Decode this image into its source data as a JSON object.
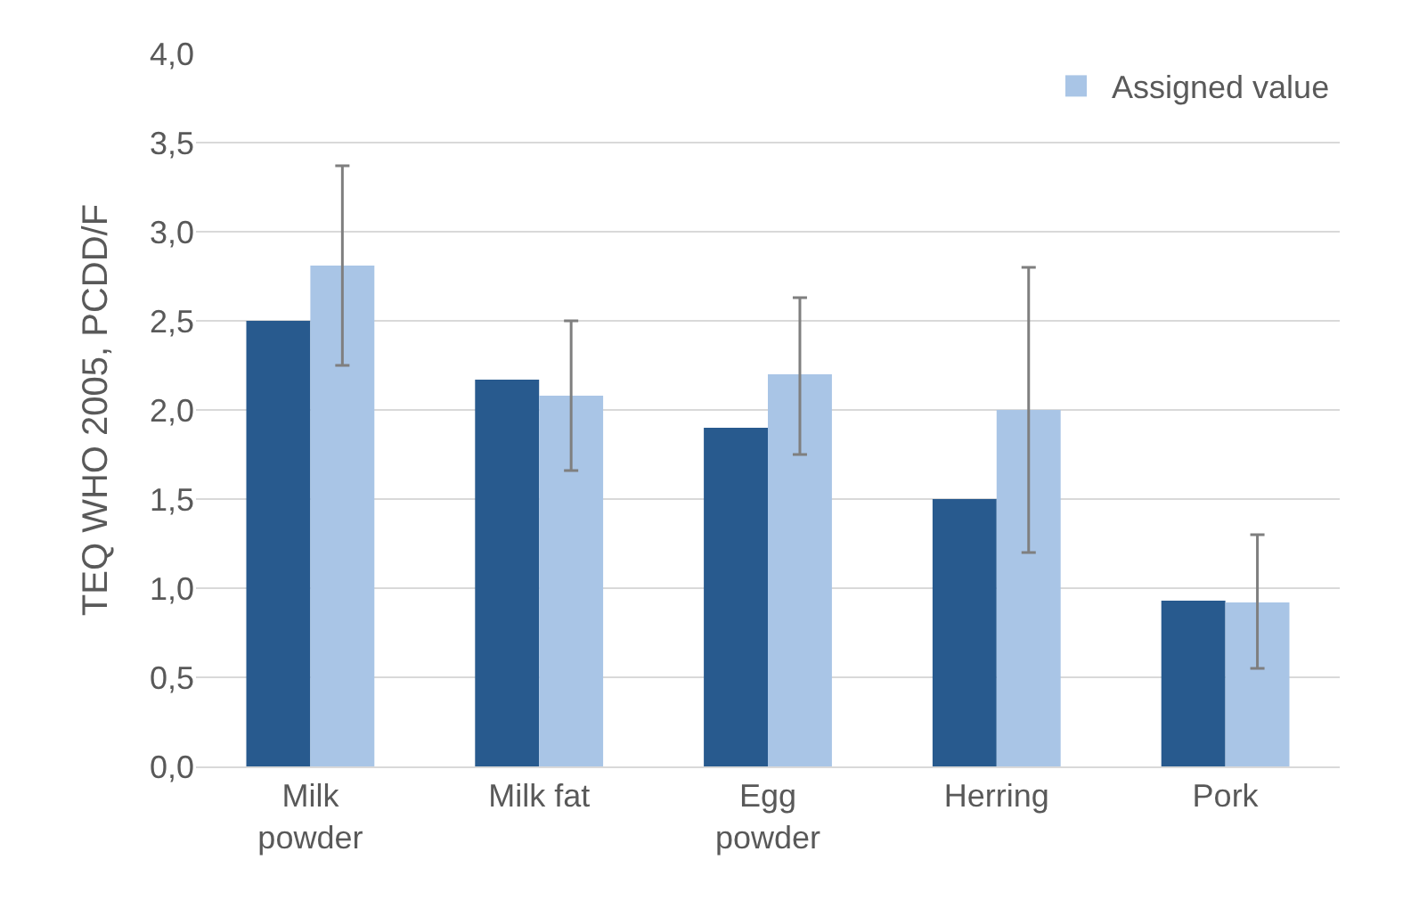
{
  "chart_data": {
    "type": "bar",
    "ylabel": "TEQ WHO 2005, PCDD/F",
    "categories": [
      "Milk powder",
      "Milk fat",
      "Egg powder",
      "Herring",
      "Pork"
    ],
    "series": [
      {
        "color": "#285a8e",
        "values": [
          2.5,
          2.17,
          1.9,
          1.5,
          0.93
        ]
      },
      {
        "name": "Assigned value",
        "color": "#a9c5e6",
        "values": [
          2.81,
          2.08,
          2.2,
          2.0,
          0.92
        ],
        "errors": [
          [
            2.25,
            3.37
          ],
          [
            1.66,
            2.5
          ],
          [
            1.75,
            2.63
          ],
          [
            1.2,
            2.8
          ],
          [
            0.55,
            1.3
          ]
        ]
      }
    ],
    "ylim": [
      0,
      4
    ],
    "yticks": [
      {
        "value": 0,
        "label": "0,0"
      },
      {
        "value": 0.5,
        "label": "0,5"
      },
      {
        "value": 1,
        "label": "1,0"
      },
      {
        "value": 1.5,
        "label": "1,5"
      },
      {
        "value": 2,
        "label": "2,0"
      },
      {
        "value": 2.5,
        "label": "2,5"
      },
      {
        "value": 3,
        "label": "3,0"
      },
      {
        "value": 3.5,
        "label": "3,5"
      },
      {
        "value": 4,
        "label": "4,0"
      }
    ],
    "grid": "y",
    "legend": "top right"
  }
}
